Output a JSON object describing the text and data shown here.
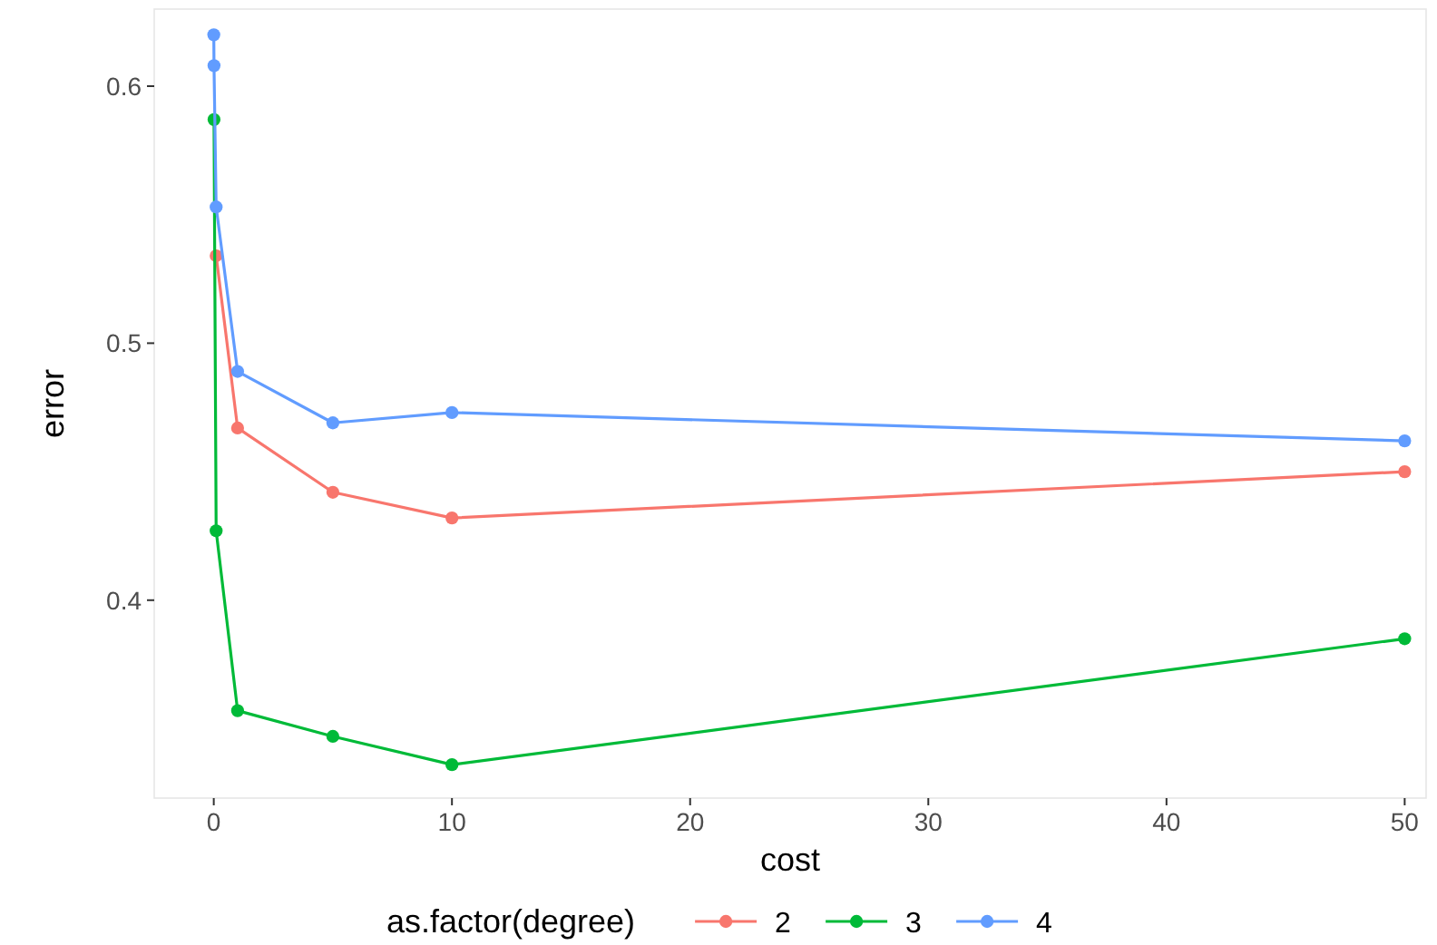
{
  "chart_data": {
    "type": "line",
    "xlabel": "cost",
    "ylabel": "error",
    "legend_title": "as.factor(degree)",
    "legend": "bottom",
    "marker": "circle",
    "grid": false,
    "xlim": [
      -2.5,
      50.9
    ],
    "xticks": [
      0,
      10,
      20,
      30,
      40,
      50
    ],
    "ylim": [
      0.323,
      0.63
    ],
    "yticks": [
      0.4,
      0.5,
      0.6
    ],
    "series": [
      {
        "name": "2",
        "color": "#f8766d",
        "x": [
          0.1,
          1,
          5,
          10,
          50
        ],
        "values": [
          0.534,
          0.467,
          0.442,
          0.432,
          0.45
        ]
      },
      {
        "name": "3",
        "color": "#00ba38",
        "x": [
          0.01,
          0.1,
          1,
          5,
          10,
          50
        ],
        "values": [
          0.587,
          0.427,
          0.357,
          0.347,
          0.336,
          0.385
        ]
      },
      {
        "name": "4",
        "color": "#619cff",
        "x": [
          0.001,
          0.01,
          0.1,
          1,
          5,
          10,
          50
        ],
        "values": [
          0.62,
          0.608,
          0.553,
          0.489,
          0.469,
          0.473,
          0.462
        ]
      }
    ]
  }
}
